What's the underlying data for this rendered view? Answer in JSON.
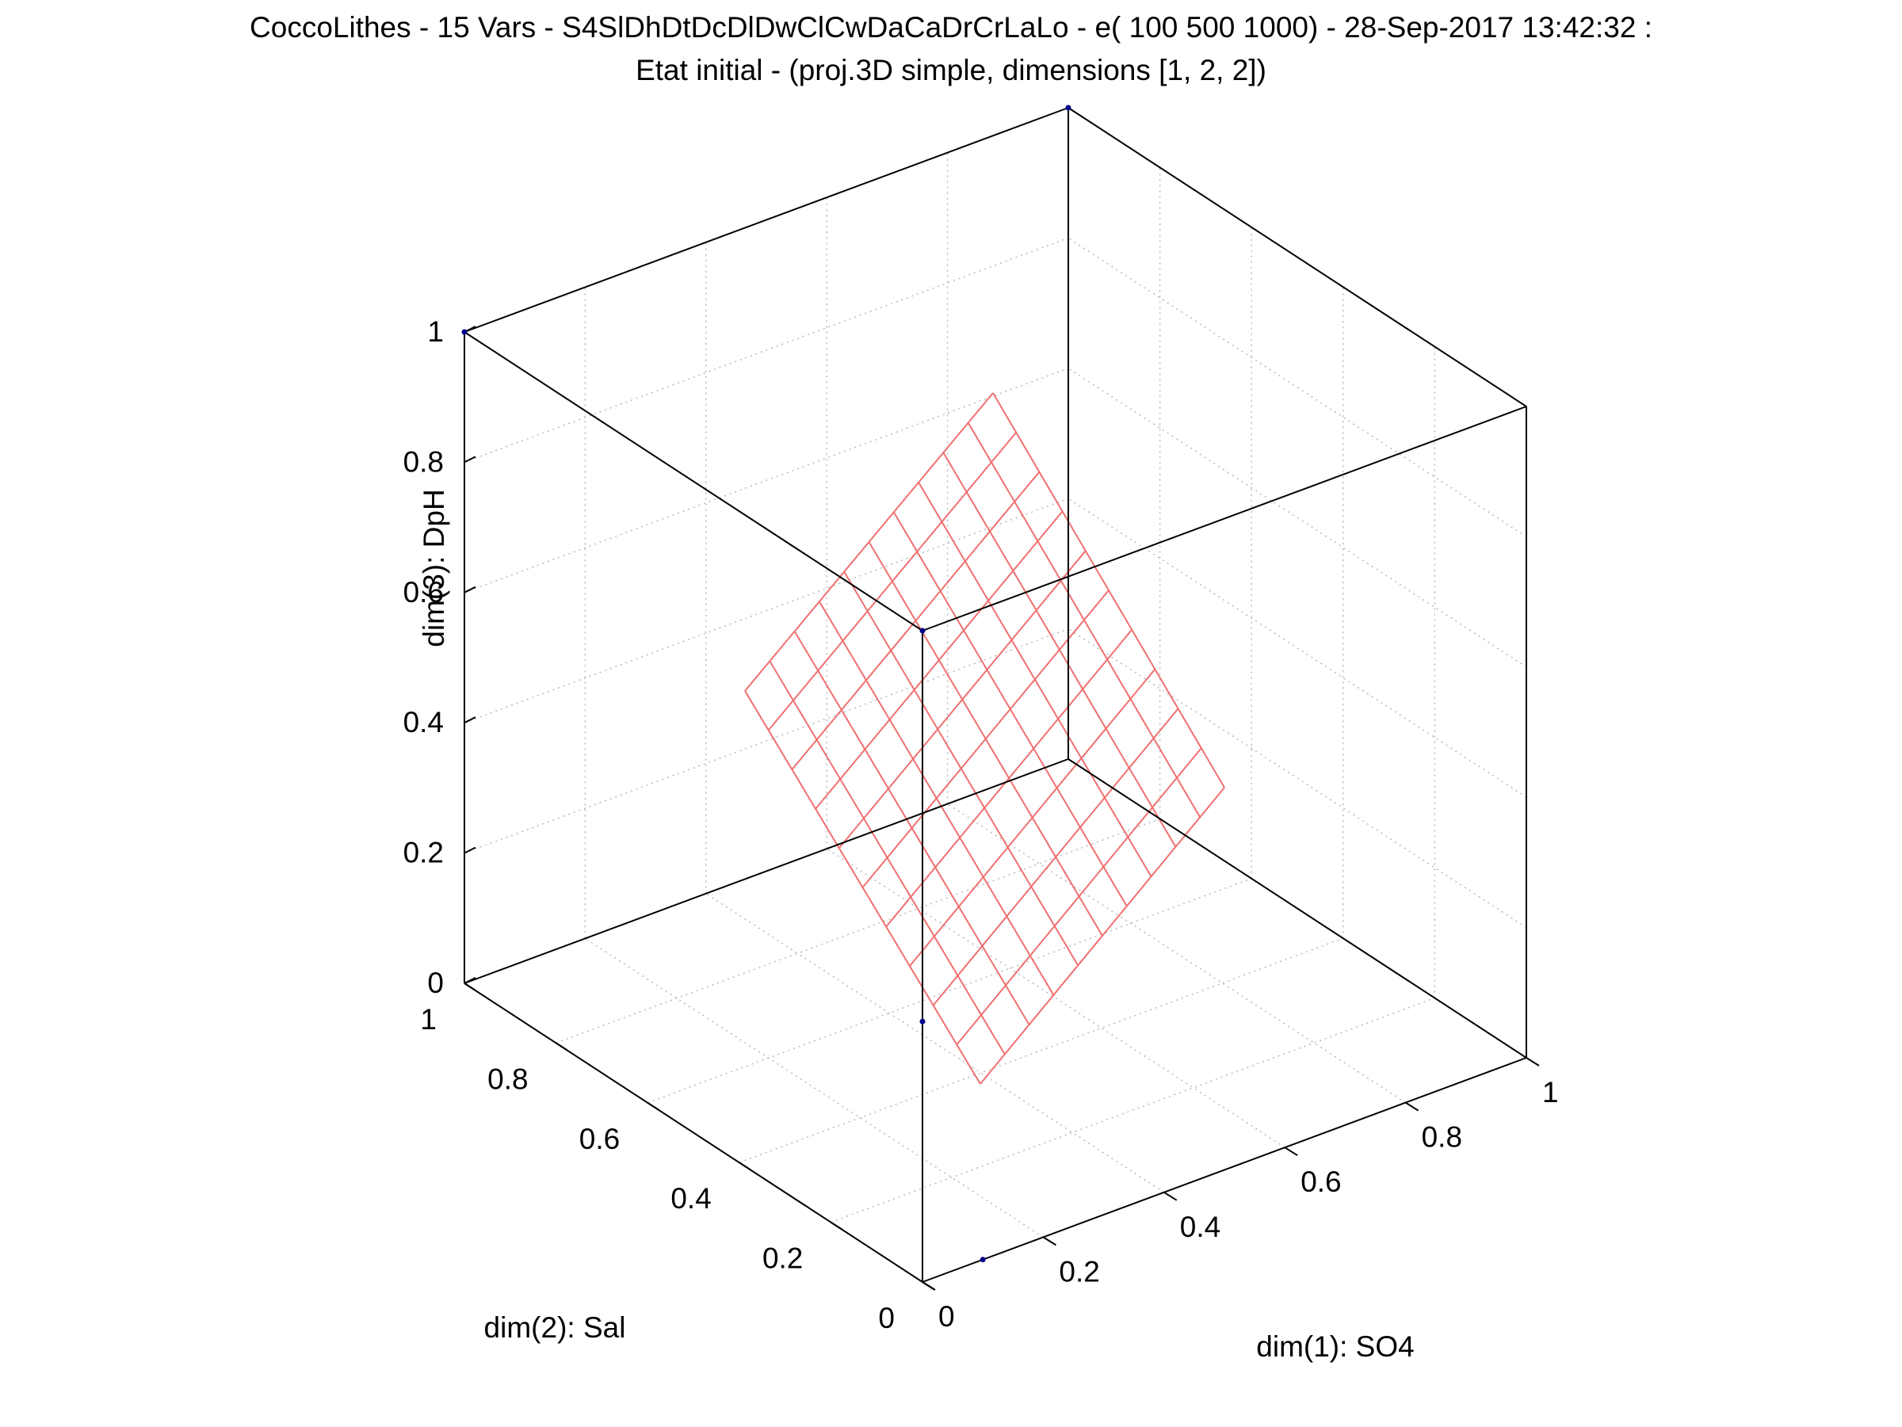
{
  "chart_data": {
    "type": "scatter",
    "title": "CoccoLithes - 15 Vars - S4SlDhDtDcDlDwClCwDaCaDrCrLaLo - e( 100 500 1000) - 28-Sep-2017 13:42:32 :",
    "subtitle": "Etat initial - (proj.3D simple, dimensions [1, 2, 2])",
    "xlabel": "dim(1): SO4",
    "ylabel": "dim(2): Sal",
    "zlabel": "dim(3): DpH",
    "xlim": [
      0,
      1
    ],
    "ylim": [
      0,
      1
    ],
    "zlim": [
      0,
      1
    ],
    "x_ticks": [
      "0",
      "0.2",
      "0.4",
      "0.6",
      "0.8",
      "1"
    ],
    "y_ticks": [
      "0",
      "0.2",
      "0.4",
      "0.6",
      "0.8",
      "1"
    ],
    "z_ticks": [
      "0",
      "0.2",
      "0.4",
      "0.6",
      "0.8",
      "1"
    ],
    "grid": true,
    "surface": {
      "type": "mesh",
      "description": "",
      "color": "#f07070",
      "rows": 10,
      "cols": 10
    },
    "series": [
      {
        "marker_color": "#00008b",
        "points": [
          {
            "x": 0.0,
            "y": 1.0,
            "z": 1.0
          },
          {
            "x": 0.0,
            "y": 0.0,
            "z": 1.0
          },
          {
            "x": 1.0,
            "y": 1.0,
            "z": 1.0
          },
          {
            "x": 0.0,
            "y": 0.0,
            "z": 0.4
          },
          {
            "x": 0.1,
            "y": 0.0,
            "z": 0.0
          }
        ]
      }
    ]
  }
}
